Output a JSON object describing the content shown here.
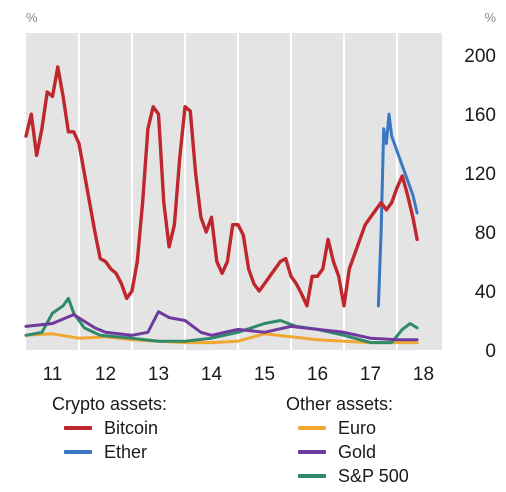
{
  "chart_data": {
    "type": "line",
    "unit_left": "%",
    "unit_right": "%",
    "y_ticks": [
      0,
      40,
      80,
      120,
      160,
      200
    ],
    "ylim": [
      0,
      215
    ],
    "x_ticks": [
      {
        "value": 2011,
        "label": "11"
      },
      {
        "value": 2012,
        "label": "12"
      },
      {
        "value": 2013,
        "label": "13"
      },
      {
        "value": 2014,
        "label": "14"
      },
      {
        "value": 2015,
        "label": "15"
      },
      {
        "value": 2016,
        "label": "16"
      },
      {
        "value": 2017,
        "label": "17"
      },
      {
        "value": 2018,
        "label": "18"
      }
    ],
    "xlim": [
      2010.5,
      2018.35
    ],
    "grid": false,
    "shaded_background": true,
    "legend_groups": [
      {
        "title": "Crypto assets:",
        "series_names": [
          "Bitcoin",
          "Ether"
        ]
      },
      {
        "title": "Other assets:",
        "series_names": [
          "Euro",
          "Gold",
          "S&P 500"
        ]
      }
    ],
    "series": [
      {
        "name": "Bitcoin",
        "color": "#c0262d",
        "points": [
          [
            2010.5,
            145
          ],
          [
            2010.6,
            160
          ],
          [
            2010.7,
            132
          ],
          [
            2010.8,
            150
          ],
          [
            2010.9,
            175
          ],
          [
            2011.0,
            172
          ],
          [
            2011.1,
            192
          ],
          [
            2011.2,
            172
          ],
          [
            2011.3,
            148
          ],
          [
            2011.4,
            148
          ],
          [
            2011.5,
            140
          ],
          [
            2011.6,
            120
          ],
          [
            2011.7,
            100
          ],
          [
            2011.8,
            80
          ],
          [
            2011.9,
            62
          ],
          [
            2012.0,
            60
          ],
          [
            2012.1,
            55
          ],
          [
            2012.2,
            52
          ],
          [
            2012.3,
            45
          ],
          [
            2012.4,
            35
          ],
          [
            2012.5,
            40
          ],
          [
            2012.6,
            60
          ],
          [
            2012.7,
            100
          ],
          [
            2012.8,
            150
          ],
          [
            2012.9,
            165
          ],
          [
            2013.0,
            160
          ],
          [
            2013.1,
            100
          ],
          [
            2013.2,
            70
          ],
          [
            2013.3,
            85
          ],
          [
            2013.4,
            130
          ],
          [
            2013.5,
            165
          ],
          [
            2013.6,
            162
          ],
          [
            2013.7,
            120
          ],
          [
            2013.8,
            90
          ],
          [
            2013.9,
            80
          ],
          [
            2014.0,
            90
          ],
          [
            2014.1,
            60
          ],
          [
            2014.2,
            52
          ],
          [
            2014.3,
            60
          ],
          [
            2014.4,
            85
          ],
          [
            2014.5,
            85
          ],
          [
            2014.6,
            78
          ],
          [
            2014.7,
            55
          ],
          [
            2014.8,
            45
          ],
          [
            2014.9,
            40
          ],
          [
            2015.0,
            45
          ],
          [
            2015.1,
            50
          ],
          [
            2015.2,
            55
          ],
          [
            2015.3,
            60
          ],
          [
            2015.4,
            62
          ],
          [
            2015.5,
            50
          ],
          [
            2015.6,
            45
          ],
          [
            2015.7,
            38
          ],
          [
            2015.8,
            30
          ],
          [
            2015.9,
            50
          ],
          [
            2016.0,
            50
          ],
          [
            2016.1,
            55
          ],
          [
            2016.2,
            75
          ],
          [
            2016.3,
            60
          ],
          [
            2016.4,
            50
          ],
          [
            2016.5,
            30
          ],
          [
            2016.6,
            55
          ],
          [
            2016.7,
            65
          ],
          [
            2016.8,
            75
          ],
          [
            2016.9,
            85
          ],
          [
            2017.0,
            90
          ],
          [
            2017.1,
            95
          ],
          [
            2017.2,
            100
          ],
          [
            2017.3,
            95
          ],
          [
            2017.4,
            100
          ],
          [
            2017.5,
            110
          ],
          [
            2017.6,
            118
          ],
          [
            2017.7,
            105
          ],
          [
            2017.8,
            90
          ],
          [
            2017.88,
            75
          ]
        ]
      },
      {
        "name": "Ether",
        "color": "#3a78c3",
        "points": [
          [
            2017.15,
            30
          ],
          [
            2017.2,
            80
          ],
          [
            2017.25,
            150
          ],
          [
            2017.3,
            140
          ],
          [
            2017.35,
            160
          ],
          [
            2017.4,
            145
          ],
          [
            2017.5,
            135
          ],
          [
            2017.6,
            125
          ],
          [
            2017.7,
            115
          ],
          [
            2017.8,
            105
          ],
          [
            2017.88,
            93
          ]
        ]
      },
      {
        "name": "Euro",
        "color": "#f0a830",
        "points": [
          [
            2010.5,
            10
          ],
          [
            2011.0,
            11
          ],
          [
            2011.5,
            8
          ],
          [
            2012.0,
            9
          ],
          [
            2012.5,
            7
          ],
          [
            2013.0,
            6
          ],
          [
            2013.5,
            5
          ],
          [
            2014.0,
            5
          ],
          [
            2014.5,
            6
          ],
          [
            2015.0,
            11
          ],
          [
            2015.5,
            9
          ],
          [
            2016.0,
            7
          ],
          [
            2016.5,
            6
          ],
          [
            2017.0,
            5
          ],
          [
            2017.5,
            5
          ],
          [
            2017.88,
            5
          ]
        ]
      },
      {
        "name": "Gold",
        "color": "#6e3a9e",
        "points": [
          [
            2010.5,
            16
          ],
          [
            2011.0,
            18
          ],
          [
            2011.4,
            24
          ],
          [
            2011.8,
            15
          ],
          [
            2012.0,
            12
          ],
          [
            2012.5,
            10
          ],
          [
            2012.8,
            12
          ],
          [
            2013.0,
            26
          ],
          [
            2013.2,
            22
          ],
          [
            2013.5,
            20
          ],
          [
            2013.8,
            12
          ],
          [
            2014.0,
            10
          ],
          [
            2014.5,
            14
          ],
          [
            2015.0,
            12
          ],
          [
            2015.5,
            16
          ],
          [
            2016.0,
            14
          ],
          [
            2016.5,
            12
          ],
          [
            2017.0,
            8
          ],
          [
            2017.5,
            7
          ],
          [
            2017.88,
            7
          ]
        ]
      },
      {
        "name": "S&P 500",
        "color": "#2f8a6a",
        "points": [
          [
            2010.5,
            10
          ],
          [
            2010.8,
            12
          ],
          [
            2011.0,
            25
          ],
          [
            2011.2,
            30
          ],
          [
            2011.3,
            35
          ],
          [
            2011.4,
            25
          ],
          [
            2011.6,
            15
          ],
          [
            2011.9,
            10
          ],
          [
            2012.5,
            8
          ],
          [
            2013.0,
            6
          ],
          [
            2013.5,
            6
          ],
          [
            2014.0,
            8
          ],
          [
            2014.5,
            12
          ],
          [
            2015.0,
            18
          ],
          [
            2015.3,
            20
          ],
          [
            2015.6,
            16
          ],
          [
            2016.0,
            14
          ],
          [
            2016.5,
            10
          ],
          [
            2017.0,
            5
          ],
          [
            2017.4,
            5
          ],
          [
            2017.6,
            14
          ],
          [
            2017.75,
            18
          ],
          [
            2017.88,
            15
          ]
        ]
      }
    ]
  }
}
